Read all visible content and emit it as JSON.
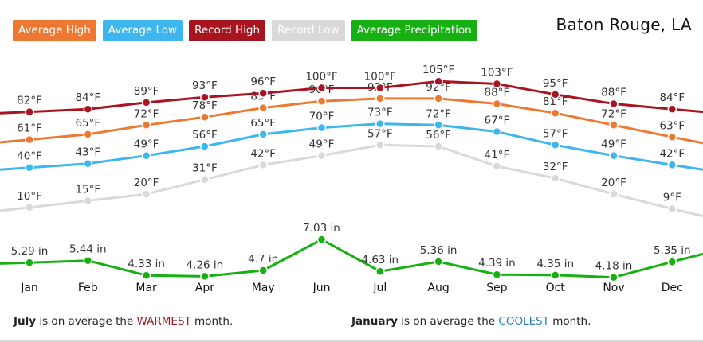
{
  "title": "Baton Rouge, LA",
  "footnotes": {
    "warm": {
      "month": "July",
      "pre": " is on average the ",
      "highlight": "WARMEST",
      "post": " month."
    },
    "cool": {
      "month": "January",
      "pre": " is on average the ",
      "highlight": "COOLEST",
      "post": " month."
    }
  },
  "chart_data": {
    "type": "line",
    "categories": [
      "Jan",
      "Feb",
      "Mar",
      "Apr",
      "May",
      "Jun",
      "Jul",
      "Aug",
      "Sep",
      "Oct",
      "Nov",
      "Dec"
    ],
    "series": [
      {
        "key": "avg_high",
        "name": "Average High",
        "color": "#ed7832",
        "unit": "°F",
        "values": [
          61,
          65,
          72,
          78,
          85,
          90,
          92,
          92,
          88,
          81,
          72,
          63
        ],
        "labels": [
          "61°F",
          "65°F",
          "72°F",
          "78°F",
          "85°F",
          "90°F",
          "92°F",
          "92°F",
          "88°F",
          "81°F",
          "72°F",
          "63°F"
        ]
      },
      {
        "key": "avg_low",
        "name": "Average Low",
        "color": "#3db5ee",
        "unit": "°F",
        "values": [
          40,
          43,
          49,
          56,
          65,
          70,
          73,
          72,
          67,
          57,
          49,
          42
        ],
        "labels": [
          "40°F",
          "43°F",
          "49°F",
          "56°F",
          "65°F",
          "70°F",
          "73°F",
          "72°F",
          "67°F",
          "57°F",
          "49°F",
          "42°F"
        ]
      },
      {
        "key": "rec_high",
        "name": "Record High",
        "color": "#a8141f",
        "unit": "°F",
        "values": [
          82,
          84,
          89,
          93,
          96,
          100,
          100,
          105,
          103,
          95,
          88,
          84
        ],
        "labels": [
          "82°F",
          "84°F",
          "89°F",
          "93°F",
          "96°F",
          "100°F",
          "100°F",
          "105°F",
          "103°F",
          "95°F",
          "88°F",
          "84°F"
        ]
      },
      {
        "key": "rec_low",
        "name": "Record Low",
        "color": "#d9d9d9",
        "unit": "°F",
        "values": [
          10,
          15,
          20,
          31,
          42,
          49,
          57,
          56,
          41,
          32,
          20,
          9
        ],
        "labels": [
          "10°F",
          "15°F",
          "20°F",
          "31°F",
          "42°F",
          "49°F",
          "57°F",
          "56°F",
          "41°F",
          "32°F",
          "20°F",
          "9°F"
        ]
      },
      {
        "key": "avg_precip",
        "name": "Average Precipitation",
        "color": "#17b012",
        "unit": "in",
        "values": [
          5.29,
          5.44,
          4.33,
          4.26,
          4.7,
          7.03,
          4.63,
          5.36,
          4.39,
          4.35,
          4.18,
          5.35
        ],
        "labels": [
          "5.29 in",
          "5.44 in",
          "4.33 in",
          "4.26 in",
          "4.7 in",
          "7.03 in",
          "4.63 in",
          "5.36 in",
          "4.39 in",
          "4.35 in",
          "4.18 in",
          "5.35 in"
        ]
      }
    ],
    "legend_placement": "top-left",
    "grid": false
  }
}
